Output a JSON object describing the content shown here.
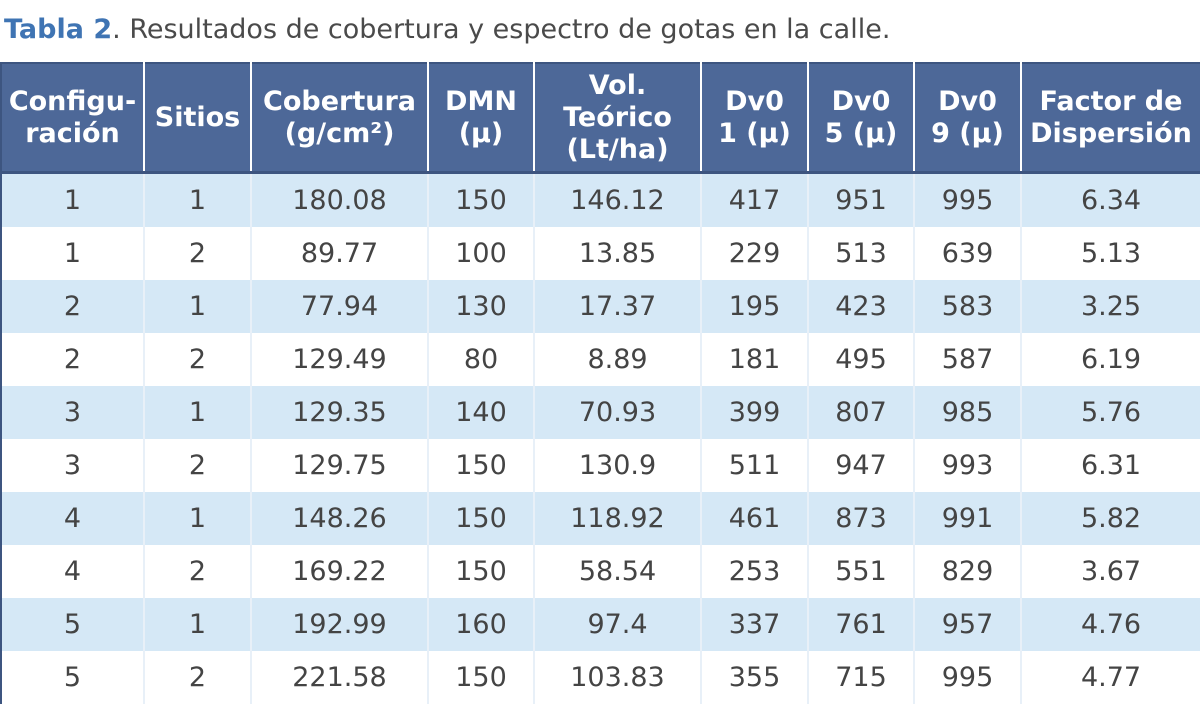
{
  "caption": {
    "label": "Tabla 2",
    "text": ". Resultados de cobertura y espectro de gotas en la calle."
  },
  "table": {
    "headers": [
      [
        "Configu-",
        "ración"
      ],
      [
        "Sitios"
      ],
      [
        "Cobertura",
        "(g/cm²)"
      ],
      [
        "DMN",
        "(µ)"
      ],
      [
        "Vol. Teórico",
        "(Lt/ha)"
      ],
      [
        "Dv0",
        "1 (µ)"
      ],
      [
        "Dv0",
        "5 (µ)"
      ],
      [
        "Dv0",
        "9 (µ)"
      ],
      [
        "Factor de",
        "Dispersión"
      ]
    ],
    "rows": [
      [
        "1",
        "1",
        "180.08",
        "150",
        "146.12",
        "417",
        "951",
        "995",
        "6.34"
      ],
      [
        "1",
        "2",
        "89.77",
        "100",
        "13.85",
        "229",
        "513",
        "639",
        "5.13"
      ],
      [
        "2",
        "1",
        "77.94",
        "130",
        "17.37",
        "195",
        "423",
        "583",
        "3.25"
      ],
      [
        "2",
        "2",
        "129.49",
        "80",
        "8.89",
        "181",
        "495",
        "587",
        "6.19"
      ],
      [
        "3",
        "1",
        "129.35",
        "140",
        "70.93",
        "399",
        "807",
        "985",
        "5.76"
      ],
      [
        "3",
        "2",
        "129.75",
        "150",
        "130.9",
        "511",
        "947",
        "993",
        "6.31"
      ],
      [
        "4",
        "1",
        "148.26",
        "150",
        "118.92",
        "461",
        "873",
        "991",
        "5.82"
      ],
      [
        "4",
        "2",
        "169.22",
        "150",
        "58.54",
        "253",
        "551",
        "829",
        "3.67"
      ],
      [
        "5",
        "1",
        "192.99",
        "160",
        "97.4",
        "337",
        "761",
        "957",
        "4.76"
      ],
      [
        "5",
        "2",
        "221.58",
        "150",
        "103.83",
        "355",
        "715",
        "995",
        "4.77"
      ]
    ]
  }
}
